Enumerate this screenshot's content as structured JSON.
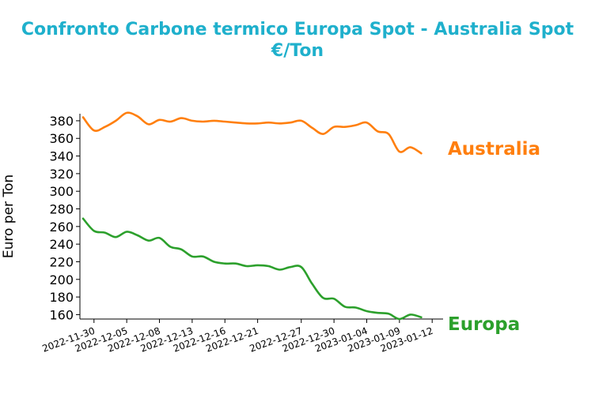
{
  "chart_data": {
    "type": "line",
    "title": "Confronto Carbone termico Europa Spot - Australia Spot",
    "subtitle": "€/Ton",
    "xlabel": "",
    "ylabel": "Euro per Ton",
    "ylim": [
      155,
      388
    ],
    "yticks": [
      160,
      180,
      200,
      220,
      240,
      260,
      280,
      300,
      320,
      340,
      360,
      380
    ],
    "xtick_labels": [
      "2022-11-30",
      "2022-12-05",
      "2022-12-08",
      "2022-12-13",
      "2022-12-16",
      "2022-12-21",
      "2022-12-27",
      "2022-12-30",
      "2023-01-04",
      "2023-01-09",
      "2023-01-12"
    ],
    "grid": false,
    "legend": "none",
    "x": [
      "2022-11-29",
      "2022-11-30",
      "2022-12-01",
      "2022-12-02",
      "2022-12-05",
      "2022-12-06",
      "2022-12-07",
      "2022-12-08",
      "2022-12-09",
      "2022-12-12",
      "2022-12-13",
      "2022-12-14",
      "2022-12-15",
      "2022-12-16",
      "2022-12-19",
      "2022-12-20",
      "2022-12-21",
      "2022-12-22",
      "2022-12-23",
      "2022-12-26",
      "2022-12-27",
      "2022-12-28",
      "2022-12-29",
      "2022-12-30",
      "2023-01-02",
      "2023-01-03",
      "2023-01-04",
      "2023-01-05",
      "2023-01-06",
      "2023-01-09",
      "2023-01-10",
      "2023-01-11",
      "2023-01-12",
      "2023-01-13"
    ],
    "series": [
      {
        "name": "Australia",
        "color": "#ff7f0e",
        "values": [
          384,
          369,
          373,
          380,
          389,
          385,
          376,
          381,
          379,
          383,
          380,
          379,
          380,
          379,
          378,
          377,
          377,
          378,
          377,
          378,
          380,
          372,
          365,
          373,
          373,
          375,
          378,
          368,
          365,
          345,
          350,
          343,
          null,
          null
        ]
      },
      {
        "name": "Europa",
        "color": "#2ca02c",
        "values": [
          269,
          255,
          253,
          248,
          254,
          250,
          244,
          247,
          237,
          234,
          226,
          226,
          220,
          218,
          218,
          215,
          216,
          215,
          211,
          214,
          214,
          195,
          179,
          178,
          169,
          168,
          164,
          162,
          161,
          155,
          160,
          157,
          null,
          null
        ]
      }
    ]
  }
}
